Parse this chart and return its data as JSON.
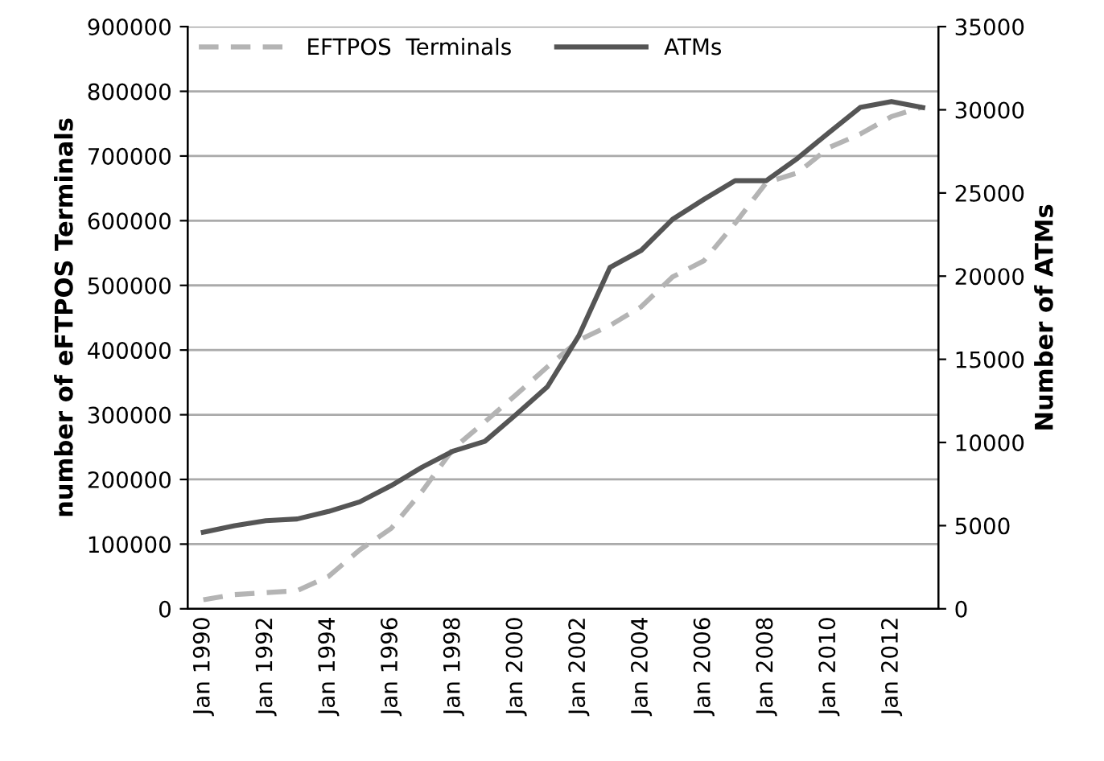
{
  "chart_data": {
    "type": "line",
    "ylabel": "number of eFTPOS Terminals",
    "y2label": "Number of ATMs",
    "categories": [
      "Jan 1990",
      null,
      "Jan 1992",
      null,
      "Jan 1994",
      null,
      "Jan 1996",
      null,
      "Jan 1998",
      null,
      "Jan 2000",
      null,
      "Jan 2002",
      null,
      "Jan 2004",
      null,
      "Jan 2006",
      null,
      "Jan 2008",
      null,
      "Jan 2010",
      null,
      "Jan 2012",
      null
    ],
    "series": [
      {
        "name": "EFTPOS  Terminals",
        "color": "#b4b4b4",
        "line_style": "dashed",
        "values": [
          14000,
          22000,
          25000,
          28000,
          50000,
          91000,
          124000,
          182000,
          248000,
          289000,
          331000,
          374000,
          415000,
          438000,
          467000,
          513000,
          538000,
          596000,
          659000,
          674000,
          713000,
          734000,
          761000,
          776000
        ]
      },
      {
        "name": "ATMs",
        "color": "#555555",
        "line_style": "solid",
        "axis": "y2",
        "values": [
          4600,
          5000,
          5300,
          5400,
          5850,
          6430,
          7400,
          8520,
          9490,
          10070,
          11680,
          13350,
          16400,
          20520,
          21550,
          23420,
          24610,
          25740,
          25740,
          27090,
          28630,
          30140,
          30500,
          30140
        ]
      }
    ],
    "ylim": [
      0,
      900000
    ],
    "yticks": [
      0,
      100000,
      200000,
      300000,
      400000,
      500000,
      600000,
      700000,
      800000,
      900000
    ],
    "y2lim": [
      0,
      35000
    ],
    "y2ticks": [
      0,
      5000,
      10000,
      15000,
      20000,
      25000,
      30000,
      35000
    ],
    "grid": "y",
    "legend": "top left",
    "marker": "none"
  }
}
